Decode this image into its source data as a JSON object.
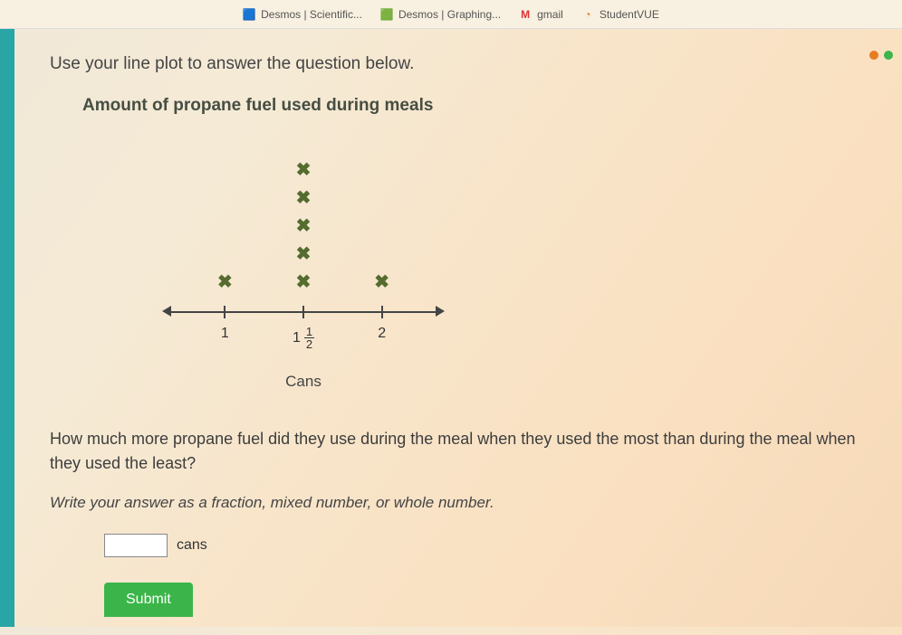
{
  "bookmarks": [
    {
      "label": "Desmos | Scientific...",
      "icon": "🟦",
      "icon_color": "#3366cc"
    },
    {
      "label": "Desmos | Graphing...",
      "icon": "🟩",
      "icon_color": "#2a8c4a"
    },
    {
      "label": "gmail",
      "icon": "M",
      "icon_color": "#d33"
    },
    {
      "label": "StudentVUE",
      "icon": "◔",
      "icon_color": "#e67e22"
    }
  ],
  "instruction": "Use your line plot to answer the question below.",
  "chart": {
    "title": "Amount of propane fuel used during meals",
    "axis_title": "Cans",
    "points": [
      {
        "label_whole": "1",
        "label_num": "",
        "label_den": "",
        "count": 1
      },
      {
        "label_whole": "1",
        "label_num": "1",
        "label_den": "2",
        "count": 5
      },
      {
        "label_whole": "2",
        "label_num": "",
        "label_den": "",
        "count": 1
      }
    ],
    "mark_color": "#556b2f",
    "axis_color": "#444444"
  },
  "question": "How much more propane fuel did they use during the meal when they used the most than during the meal when they used the least?",
  "hint": "Write your answer as a fraction, mixed number, or whole number.",
  "answer_unit": "cans",
  "submit_label": "Submit",
  "status_dots": [
    "#e77c1e",
    "#3bb54a"
  ]
}
